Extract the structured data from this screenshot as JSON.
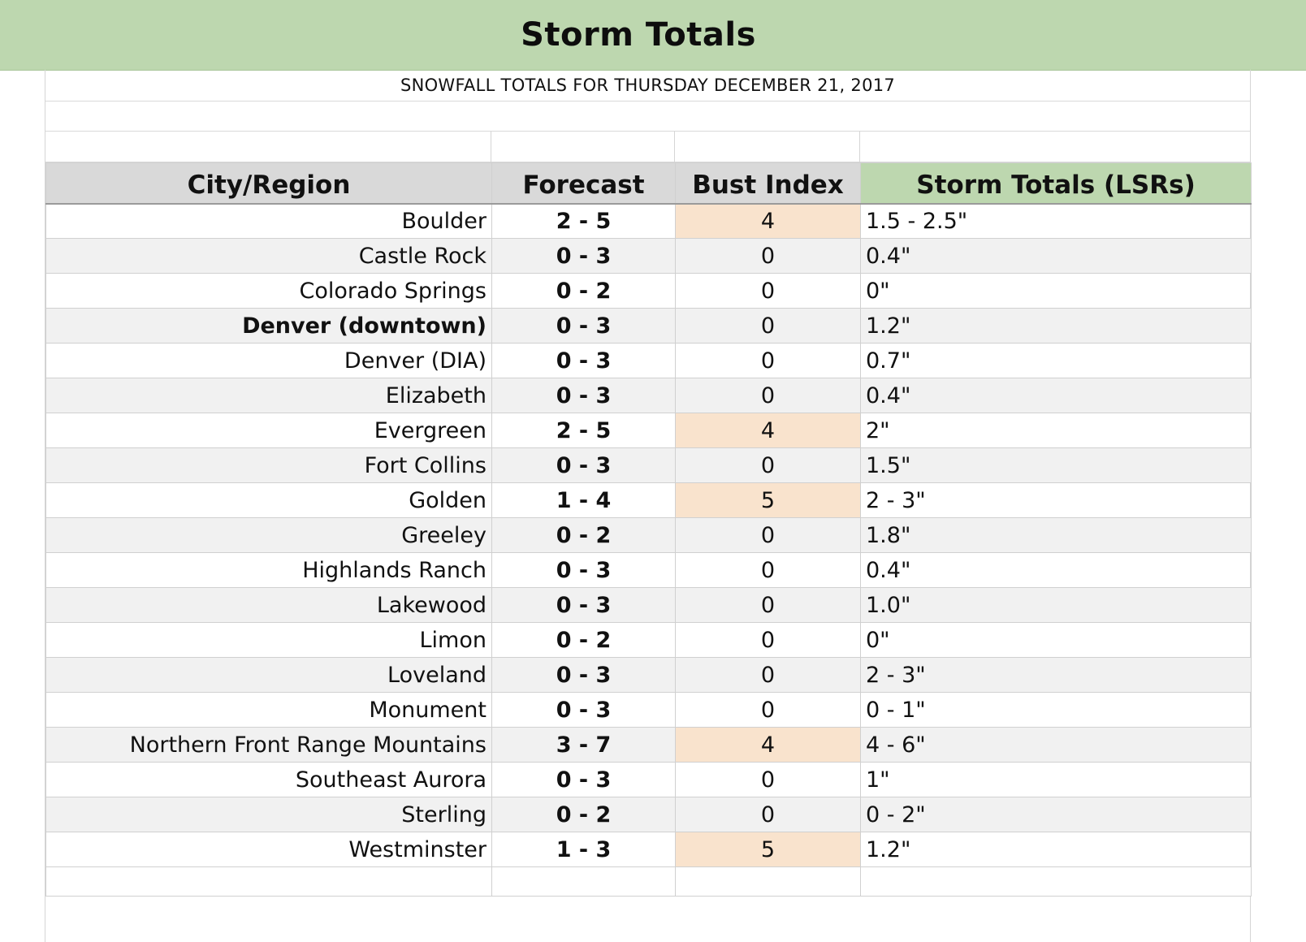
{
  "header": {
    "title": "Storm Totals",
    "subtitle": "SNOWFALL TOTALS FOR THURSDAY DECEMBER 21, 2017"
  },
  "table": {
    "columns": [
      "City/Region",
      "Forecast",
      "Bust Index",
      "Storm Totals (LSRs)"
    ],
    "rows": [
      {
        "city": "Boulder",
        "forecast": "2 - 5",
        "bust": "4",
        "totals": "1.5 - 2.5\"",
        "bold": false,
        "highlight": true
      },
      {
        "city": "Castle Rock",
        "forecast": "0 - 3",
        "bust": "0",
        "totals": "0.4\"",
        "bold": false,
        "highlight": false
      },
      {
        "city": "Colorado Springs",
        "forecast": "0 - 2",
        "bust": "0",
        "totals": "0\"",
        "bold": false,
        "highlight": false
      },
      {
        "city": "Denver (downtown)",
        "forecast": "0 - 3",
        "bust": "0",
        "totals": "1.2\"",
        "bold": true,
        "highlight": false
      },
      {
        "city": "Denver (DIA)",
        "forecast": "0 - 3",
        "bust": "0",
        "totals": "0.7\"",
        "bold": false,
        "highlight": false
      },
      {
        "city": "Elizabeth",
        "forecast": "0 - 3",
        "bust": "0",
        "totals": "0.4\"",
        "bold": false,
        "highlight": false
      },
      {
        "city": "Evergreen",
        "forecast": "2 - 5",
        "bust": "4",
        "totals": "2\"",
        "bold": false,
        "highlight": true
      },
      {
        "city": "Fort Collins",
        "forecast": "0 - 3",
        "bust": "0",
        "totals": "1.5\"",
        "bold": false,
        "highlight": false
      },
      {
        "city": "Golden",
        "forecast": "1 - 4",
        "bust": "5",
        "totals": "2 - 3\"",
        "bold": false,
        "highlight": true
      },
      {
        "city": "Greeley",
        "forecast": "0 - 2",
        "bust": "0",
        "totals": "1.8\"",
        "bold": false,
        "highlight": false
      },
      {
        "city": "Highlands Ranch",
        "forecast": "0 - 3",
        "bust": "0",
        "totals": "0.4\"",
        "bold": false,
        "highlight": false
      },
      {
        "city": "Lakewood",
        "forecast": "0 - 3",
        "bust": "0",
        "totals": "1.0\"",
        "bold": false,
        "highlight": false
      },
      {
        "city": "Limon",
        "forecast": "0 - 2",
        "bust": "0",
        "totals": "0\"",
        "bold": false,
        "highlight": false
      },
      {
        "city": "Loveland",
        "forecast": "0 - 3",
        "bust": "0",
        "totals": "2 - 3\"",
        "bold": false,
        "highlight": false
      },
      {
        "city": "Monument",
        "forecast": "0 - 3",
        "bust": "0",
        "totals": "0 - 1\"",
        "bold": false,
        "highlight": false
      },
      {
        "city": "Northern Front Range Mountains",
        "forecast": "3 - 7",
        "bust": "4",
        "totals": "4 - 6\"",
        "bold": false,
        "highlight": true
      },
      {
        "city": "Southeast Aurora",
        "forecast": "0 - 3",
        "bust": "0",
        "totals": "1\"",
        "bold": false,
        "highlight": false
      },
      {
        "city": "Sterling",
        "forecast": "0 - 2",
        "bust": "0",
        "totals": "0 - 2\"",
        "bold": false,
        "highlight": false
      },
      {
        "city": "Westminster",
        "forecast": "1 - 3",
        "bust": "5",
        "totals": "1.2\"",
        "bold": false,
        "highlight": true
      }
    ]
  },
  "colors": {
    "banner": "#bdd7af",
    "header_gray": "#d9d9d9",
    "bust_highlight": "#f9e3cd",
    "alt_row": "#f1f1f1"
  }
}
